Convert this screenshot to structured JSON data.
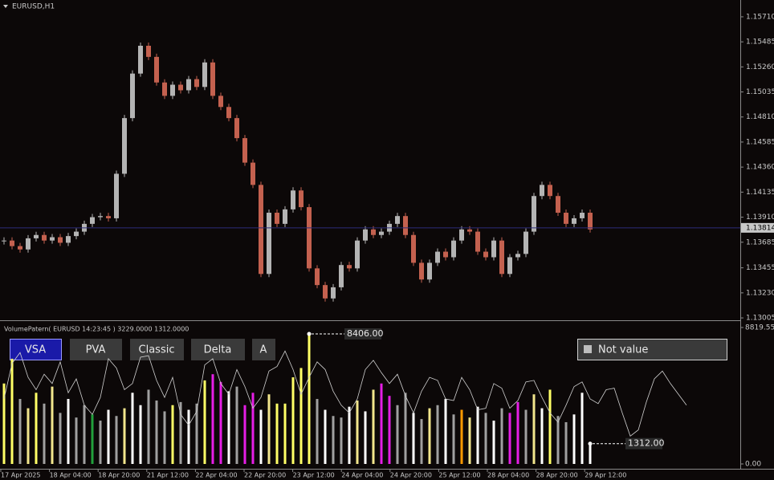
{
  "header": {
    "symbol": "EURUSD,H1"
  },
  "price_chart": {
    "type": "candlestick",
    "close": [
      1.137,
      1.1365,
      1.1362,
      1.1372,
      1.1375,
      1.137,
      1.1373,
      1.1368,
      1.1374,
      1.1378,
      1.1385,
      1.1391,
      1.1392,
      1.139,
      1.143,
      1.148,
      1.152,
      1.1545,
      1.1535,
      1.1512,
      1.15,
      1.151,
      1.1505,
      1.1515,
      1.1508,
      1.153,
      1.15,
      1.149,
      1.148,
      1.1462,
      1.144,
      1.142,
      1.134,
      1.1395,
      1.1385,
      1.1398,
      1.1415,
      1.14,
      1.1345,
      1.133,
      1.1318,
      1.1328,
      1.1348,
      1.1345,
      1.137,
      1.138,
      1.1375,
      1.1378,
      1.1385,
      1.1392,
      1.1375,
      1.135,
      1.1335,
      1.135,
      1.136,
      1.1355,
      1.137,
      1.138,
      1.1378,
      1.136,
      1.1355,
      1.137,
      1.134,
      1.1355,
      1.1358,
      1.1378,
      1.141,
      1.142,
      1.141,
      1.1395,
      1.1385,
      1.139,
      1.1395,
      1.138
    ],
    "up_color": "#b4b4b4",
    "down_color": "#c4614f",
    "ylim": [
      1.12991,
      1.15861
    ],
    "yticks": [
      {
        "value": 1.1571,
        "label": "1.15710"
      },
      {
        "value": 1.15485,
        "label": "1.15485"
      },
      {
        "value": 1.1526,
        "label": "1.15260"
      },
      {
        "value": 1.15035,
        "label": "1.15035"
      },
      {
        "value": 1.1481,
        "label": "1.14810"
      },
      {
        "value": 1.14585,
        "label": "1.14585"
      },
      {
        "value": 1.1436,
        "label": "1.14360"
      },
      {
        "value": 1.14135,
        "label": "1.14135"
      },
      {
        "value": 1.1391,
        "label": "1.13910"
      },
      {
        "value": 1.13685,
        "label": "1.13685"
      },
      {
        "value": 1.13455,
        "label": "1.13455"
      },
      {
        "value": 1.1323,
        "label": "1.13230"
      },
      {
        "value": 1.13005,
        "label": "1.13005"
      }
    ],
    "current_price": {
      "value": 1.13814,
      "label": "1.13814"
    }
  },
  "indicator": {
    "title": "VolumePatern( EURUSD 14:23:45 ) 3229.0000 1312.0000",
    "buttons": [
      "VSA",
      "PVA",
      "Classic",
      "Delta",
      "A"
    ],
    "status": "Not value",
    "volume": {
      "values": [
        5200,
        6800,
        4200,
        3600,
        4600,
        3900,
        5000,
        3300,
        4200,
        3000,
        3800,
        3200,
        2800,
        3500,
        3100,
        3600,
        4600,
        3800,
        4800,
        4100,
        3400,
        3800,
        4000,
        3500,
        3900,
        5400,
        5800,
        5300,
        4700,
        5000,
        3800,
        4600,
        3500,
        4500,
        3900,
        3900,
        5600,
        6200,
        8406,
        4200,
        3500,
        3100,
        3000,
        3700,
        4100,
        3400,
        4800,
        5200,
        4400,
        3800,
        4600,
        3300,
        2900,
        3600,
        3800,
        4200,
        3200,
        3500,
        3000,
        3700,
        3300,
        2800,
        3600,
        3300,
        4000,
        3500,
        4500,
        3600,
        4800,
        3100,
        2700,
        3200,
        4600,
        1312
      ],
      "colors": [
        "#ffff66",
        "#ffff66",
        "#a0a0a0",
        "#f2e68c",
        "#ffff66",
        "#a0a0a0",
        "#f2e68c",
        "#a0a0a0",
        "#ffffff",
        "#a0a0a0",
        "#a0a0a0",
        "#22a03c",
        "#a0a0a0",
        "#ffffff",
        "#a0a0a0",
        "#f2e68c",
        "#ffffff",
        "#ffffff",
        "#a0a0a0",
        "#a0a0a0",
        "#a0a0a0",
        "#ffff66",
        "#a0a0a0",
        "#ffffff",
        "#a0a0a0",
        "#ffff66",
        "#e61ee6",
        "#e61ee6",
        "#ffffff",
        "#a0a0a0",
        "#e61ee6",
        "#e61ee6",
        "#ffffff",
        "#f2e68c",
        "#ffff66",
        "#ffff66",
        "#ffff66",
        "#ffff66",
        "#ffff66",
        "#a0a0a0",
        "#ffffff",
        "#a0a0a0",
        "#a0a0a0",
        "#ffffff",
        "#f2e68c",
        "#ffffff",
        "#f2e68c",
        "#e61ee6",
        "#e61ee6",
        "#a0a0a0",
        "#a0a0a0",
        "#ffffff",
        "#a0a0a0",
        "#f2e68c",
        "#a0a0a0",
        "#ffffff",
        "#a0a0a0",
        "#ff9900",
        "#f2e68c",
        "#ffffff",
        "#a0a0a0",
        "#ffffff",
        "#a0a0a0",
        "#e61ee6",
        "#e61ee6",
        "#a0a0a0",
        "#f2e68c",
        "#ffffff",
        "#ffff66",
        "#a0a0a0",
        "#a0a0a0",
        "#ffffff",
        "#ffffff",
        "#ffffff"
      ]
    },
    "line": {
      "values": [
        4200,
        6500,
        7200,
        5600,
        4800,
        5800,
        5200,
        6600,
        4600,
        5500,
        3800,
        3200,
        4300,
        6800,
        6200,
        4800,
        5200,
        6900,
        7000,
        5400,
        4300,
        5600,
        3200,
        2500,
        3400,
        6400,
        6800,
        5200,
        4500,
        6100,
        5000,
        3600,
        4300,
        6000,
        6300,
        7300,
        6100,
        4500,
        5600,
        6600,
        6100,
        4700,
        3800,
        3300,
        4200,
        6100,
        6700,
        5900,
        5200,
        5800,
        4400,
        3300,
        4700,
        5600,
        5400,
        4200,
        4100,
        5600,
        4800,
        3500,
        3600,
        5200,
        4900,
        3600,
        4100,
        5300,
        5400,
        4300,
        3300,
        2700,
        3800,
        5000,
        5300,
        4200,
        3900,
        4800,
        4900,
        3300,
        1800,
        2200,
        4000,
        5500,
        6000,
        5200,
        4500,
        3800
      ],
      "color": "#d0d0d0"
    },
    "ylim": [
      0,
      8819.55
    ],
    "yticks": [
      {
        "value": 8819.55,
        "label": "8819.55"
      },
      {
        "value": 0,
        "label": "0.00"
      }
    ],
    "callouts": [
      {
        "value": 8406,
        "label": "8406.00"
      },
      {
        "value": 1312,
        "label": "1312.00"
      }
    ]
  },
  "x_axis": {
    "labels": [
      "17 Apr 2025",
      "18 Apr 04:00",
      "18 Apr 20:00",
      "21 Apr 12:00",
      "22 Apr 04:00",
      "22 Apr 20:00",
      "23 Apr 12:00",
      "24 Apr 04:00",
      "24 Apr 20:00",
      "25 Apr 12:00",
      "28 Apr 04:00",
      "28 Apr 20:00",
      "29 Apr 12:00"
    ]
  }
}
